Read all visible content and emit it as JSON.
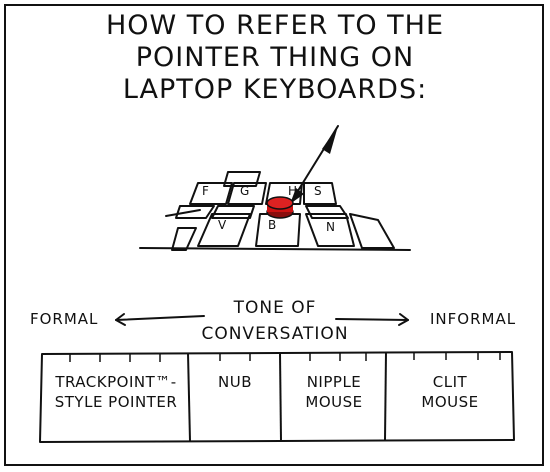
{
  "comic": {
    "title_lines": [
      "HOW TO REFER TO THE",
      "POINTER THING ON",
      "LAPTOP KEYBOARDS:"
    ],
    "keys": [
      "F",
      "G",
      "H",
      "S",
      "V",
      "B",
      "N"
    ],
    "scale": {
      "left_label": "FORMAL",
      "right_label": "INFORMAL",
      "center_lines": [
        "TONE OF",
        "CONVERSATION"
      ]
    },
    "cells": [
      {
        "lines": [
          "TRACKPOINT™-",
          "STYLE POINTER"
        ]
      },
      {
        "lines": [
          "NUB"
        ]
      },
      {
        "lines": [
          "NIPPLE",
          "MOUSE"
        ]
      },
      {
        "lines": [
          "CLIT",
          "MOUSE"
        ]
      }
    ],
    "colors": {
      "ink": "#111111",
      "pointer": "#cc1111",
      "background": "#ffffff"
    }
  }
}
